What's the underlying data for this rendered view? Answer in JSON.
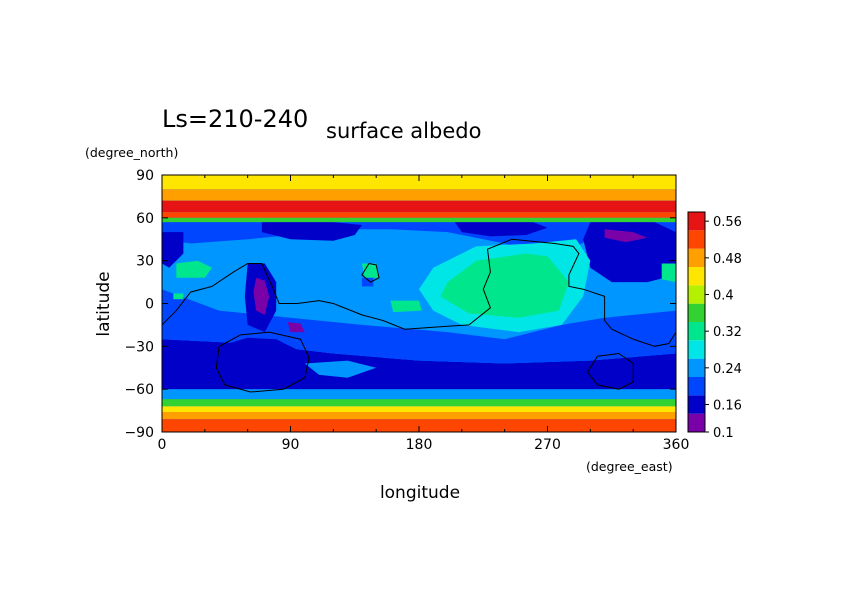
{
  "chart_data": {
    "type": "heatmap",
    "title": "Ls=210-240",
    "subtitle": "surface albedo",
    "xlabel": "longitude",
    "ylabel": "latitude",
    "xunit": "(degree_east)",
    "yunit": "(degree_north)",
    "xlim": [
      0,
      360
    ],
    "ylim": [
      -90,
      90
    ],
    "xticks": [
      "0",
      "90",
      "180",
      "270",
      "360"
    ],
    "yticks": [
      "90",
      "60",
      "30",
      "0",
      "−30",
      "−60",
      "−90"
    ],
    "colorbar": {
      "levels": [
        0.1,
        0.14,
        0.18,
        0.22,
        0.26,
        0.3,
        0.34,
        0.38,
        0.42,
        0.46,
        0.5,
        0.54,
        0.58
      ],
      "colors": [
        "#7a00a8",
        "#0000c8",
        "#0046ff",
        "#0096ff",
        "#00e6e6",
        "#00e68c",
        "#32d232",
        "#b4f000",
        "#ffe600",
        "#ffa000",
        "#ff4600",
        "#e61414",
        "#ff9696"
      ],
      "tick_labels": [
        "0.1",
        "0.16",
        "0.24",
        "0.32",
        "0.4",
        "0.48",
        "0.56"
      ]
    },
    "latitude_bands": [
      {
        "lat": [
          80,
          90
        ],
        "value": 0.42
      },
      {
        "lat": [
          72,
          80
        ],
        "value": 0.48
      },
      {
        "lat": [
          64,
          72
        ],
        "value": 0.56
      },
      {
        "lat": [
          60,
          64
        ],
        "value": 0.5
      },
      {
        "lat": [
          57,
          60
        ],
        "value": 0.36
      },
      {
        "lat": [
          -67,
          -60
        ],
        "value": 0.24
      },
      {
        "lat": [
          -72,
          -67
        ],
        "value": 0.36
      },
      {
        "lat": [
          -76,
          -72
        ],
        "value": 0.42
      },
      {
        "lat": [
          -81,
          -76
        ],
        "value": 0.48
      },
      {
        "lat": [
          -90,
          -81
        ],
        "value": 0.52
      }
    ],
    "background_value": 0.22,
    "regions": [
      {
        "value": 0.14,
        "points": [
          [
            0,
            -25
          ],
          [
            60,
            -28
          ],
          [
            120,
            -35
          ],
          [
            180,
            -40
          ],
          [
            240,
            -42
          ],
          [
            300,
            -40
          ],
          [
            360,
            -35
          ],
          [
            360,
            -60
          ],
          [
            300,
            -61
          ],
          [
            240,
            -63
          ],
          [
            180,
            -62
          ],
          [
            120,
            -61
          ],
          [
            60,
            -62
          ],
          [
            0,
            -61
          ]
        ]
      },
      {
        "value": 0.18,
        "points": [
          [
            0,
            10
          ],
          [
            40,
            -5
          ],
          [
            90,
            -10
          ],
          [
            140,
            -15
          ],
          [
            200,
            -20
          ],
          [
            240,
            -25
          ],
          [
            280,
            -15
          ],
          [
            310,
            -10
          ],
          [
            360,
            -5
          ],
          [
            360,
            -35
          ],
          [
            300,
            -40
          ],
          [
            240,
            -42
          ],
          [
            180,
            -40
          ],
          [
            120,
            -35
          ],
          [
            60,
            -28
          ],
          [
            0,
            -25
          ]
        ]
      },
      {
        "value": 0.18,
        "points": [
          [
            0,
            57
          ],
          [
            60,
            57
          ],
          [
            120,
            57
          ],
          [
            200,
            57
          ],
          [
            260,
            57
          ],
          [
            320,
            57
          ],
          [
            360,
            57
          ],
          [
            360,
            40
          ],
          [
            340,
            45
          ],
          [
            300,
            45
          ],
          [
            270,
            30
          ],
          [
            240,
            42
          ],
          [
            200,
            50
          ],
          [
            160,
            52
          ],
          [
            120,
            52
          ],
          [
            90,
            48
          ],
          [
            60,
            45
          ],
          [
            20,
            42
          ],
          [
            0,
            45
          ]
        ]
      },
      {
        "value": 0.14,
        "points": [
          [
            300,
            57
          ],
          [
            345,
            57
          ],
          [
            360,
            50
          ],
          [
            360,
            20
          ],
          [
            340,
            15
          ],
          [
            315,
            15
          ],
          [
            300,
            25
          ],
          [
            295,
            45
          ]
        ]
      },
      {
        "value": 0.14,
        "points": [
          [
            70,
            57
          ],
          [
            120,
            57
          ],
          [
            140,
            55
          ],
          [
            135,
            48
          ],
          [
            120,
            44
          ],
          [
            90,
            45
          ],
          [
            70,
            50
          ]
        ]
      },
      {
        "value": 0.14,
        "points": [
          [
            205,
            57
          ],
          [
            260,
            57
          ],
          [
            270,
            53
          ],
          [
            255,
            48
          ],
          [
            230,
            47
          ],
          [
            210,
            50
          ]
        ]
      },
      {
        "value": 0.14,
        "points": [
          [
            0,
            50
          ],
          [
            15,
            50
          ],
          [
            15,
            35
          ],
          [
            5,
            25
          ],
          [
            0,
            28
          ]
        ]
      },
      {
        "value": 0.14,
        "points": [
          [
            60,
            28
          ],
          [
            72,
            28
          ],
          [
            80,
            15
          ],
          [
            80,
            -5
          ],
          [
            72,
            -20
          ],
          [
            60,
            -15
          ],
          [
            58,
            5
          ]
        ]
      },
      {
        "value": 0.14,
        "points": [
          [
            40,
            -30
          ],
          [
            60,
            -24
          ],
          [
            80,
            -25
          ],
          [
            100,
            -35
          ],
          [
            95,
            -55
          ],
          [
            75,
            -60
          ],
          [
            50,
            -58
          ],
          [
            38,
            -48
          ]
        ]
      },
      {
        "value": 0.1,
        "points": [
          [
            66,
            18
          ],
          [
            72,
            16
          ],
          [
            75,
            5
          ],
          [
            72,
            -8
          ],
          [
            66,
            -5
          ],
          [
            64,
            8
          ]
        ]
      },
      {
        "value": 0.1,
        "points": [
          [
            310,
            52
          ],
          [
            330,
            50
          ],
          [
            340,
            46
          ],
          [
            325,
            43
          ],
          [
            310,
            46
          ]
        ]
      },
      {
        "value": 0.1,
        "points": [
          [
            88,
            -13
          ],
          [
            97,
            -14
          ],
          [
            100,
            -20
          ],
          [
            90,
            -20
          ]
        ]
      },
      {
        "value": 0.26,
        "points": [
          [
            190,
            25
          ],
          [
            220,
            40
          ],
          [
            260,
            42
          ],
          [
            290,
            45
          ],
          [
            300,
            30
          ],
          [
            295,
            5
          ],
          [
            280,
            -15
          ],
          [
            250,
            -20
          ],
          [
            210,
            -15
          ],
          [
            190,
            -5
          ],
          [
            180,
            10
          ]
        ]
      },
      {
        "value": 0.3,
        "points": [
          [
            200,
            15
          ],
          [
            220,
            30
          ],
          [
            255,
            35
          ],
          [
            270,
            33
          ],
          [
            285,
            15
          ],
          [
            278,
            -5
          ],
          [
            250,
            -10
          ],
          [
            215,
            -7
          ],
          [
            195,
            5
          ]
        ]
      },
      {
        "value": 0.3,
        "points": [
          [
            10,
            28
          ],
          [
            25,
            30
          ],
          [
            35,
            25
          ],
          [
            30,
            18
          ],
          [
            10,
            18
          ]
        ]
      },
      {
        "value": 0.3,
        "points": [
          [
            140,
            28
          ],
          [
            150,
            28
          ],
          [
            152,
            18
          ],
          [
            142,
            18
          ]
        ]
      },
      {
        "value": 0.3,
        "points": [
          [
            160,
            2
          ],
          [
            180,
            2
          ],
          [
            182,
            -5
          ],
          [
            162,
            -6
          ]
        ]
      },
      {
        "value": 0.3,
        "points": [
          [
            350,
            28
          ],
          [
            360,
            28
          ],
          [
            360,
            15
          ],
          [
            350,
            17
          ]
        ]
      },
      {
        "value": 0.3,
        "points": [
          [
            8,
            7
          ],
          [
            15,
            7
          ],
          [
            15,
            3
          ],
          [
            8,
            3
          ]
        ]
      },
      {
        "value": 0.18,
        "points": [
          [
            140,
            18
          ],
          [
            148,
            18
          ],
          [
            148,
            12
          ],
          [
            140,
            12
          ]
        ]
      },
      {
        "value": 0.22,
        "points": [
          [
            100,
            -42
          ],
          [
            130,
            -40
          ],
          [
            150,
            -45
          ],
          [
            130,
            -52
          ],
          [
            110,
            -50
          ]
        ]
      }
    ],
    "contours": [
      {
        "points": [
          [
            0,
            -15
          ],
          [
            10,
            -5
          ],
          [
            20,
            8
          ],
          [
            35,
            12
          ],
          [
            50,
            22
          ],
          [
            60,
            28
          ],
          [
            70,
            28
          ],
          [
            78,
            10
          ],
          [
            82,
            0
          ],
          [
            95,
            0
          ],
          [
            110,
            2
          ],
          [
            120,
            0
          ],
          [
            140,
            -8
          ],
          [
            155,
            -12
          ],
          [
            170,
            -18
          ],
          [
            185,
            -17
          ],
          [
            200,
            -16
          ],
          [
            215,
            -15
          ],
          [
            230,
            -3
          ],
          [
            225,
            10
          ],
          [
            230,
            22
          ],
          [
            228,
            38
          ],
          [
            245,
            45
          ],
          [
            275,
            42
          ],
          [
            288,
            40
          ],
          [
            292,
            35
          ],
          [
            285,
            20
          ],
          [
            285,
            12
          ],
          [
            295,
            10
          ],
          [
            310,
            5
          ],
          [
            310,
            -12
          ],
          [
            315,
            -18
          ],
          [
            330,
            -25
          ],
          [
            345,
            -30
          ],
          [
            355,
            -28
          ],
          [
            360,
            -20
          ]
        ]
      },
      {
        "points": [
          [
            40,
            -30
          ],
          [
            55,
            -22
          ],
          [
            75,
            -20
          ],
          [
            97,
            -25
          ],
          [
            103,
            -38
          ],
          [
            100,
            -52
          ],
          [
            85,
            -60
          ],
          [
            62,
            -62
          ],
          [
            44,
            -57
          ],
          [
            38,
            -45
          ],
          [
            40,
            -30
          ]
        ]
      },
      {
        "points": [
          [
            145,
            28
          ],
          [
            150,
            27
          ],
          [
            152,
            18
          ],
          [
            146,
            15
          ],
          [
            140,
            20
          ],
          [
            145,
            28
          ]
        ]
      },
      {
        "points": [
          [
            305,
            -37
          ],
          [
            320,
            -35
          ],
          [
            330,
            -42
          ],
          [
            330,
            -55
          ],
          [
            320,
            -60
          ],
          [
            305,
            -57
          ],
          [
            298,
            -48
          ],
          [
            305,
            -37
          ]
        ]
      }
    ]
  }
}
